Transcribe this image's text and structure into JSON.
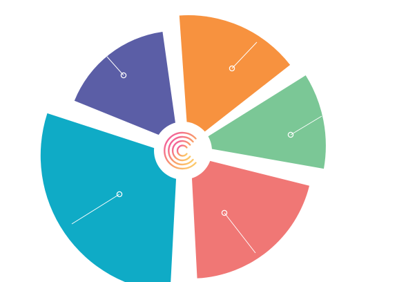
{
  "diagram": {
    "type": "segmented-wheel",
    "center_icon": "c-maze-logo-icon",
    "segments": [
      {
        "id": "purple",
        "color": "#5b5ea6"
      },
      {
        "id": "orange",
        "color": "#f7923f"
      },
      {
        "id": "green",
        "color": "#7bc796"
      },
      {
        "id": "red",
        "color": "#f07775"
      },
      {
        "id": "teal",
        "color": "#0fabc6"
      }
    ],
    "logo_gradient": [
      "#f04da8",
      "#f99b6b",
      "#fdd36a"
    ]
  }
}
